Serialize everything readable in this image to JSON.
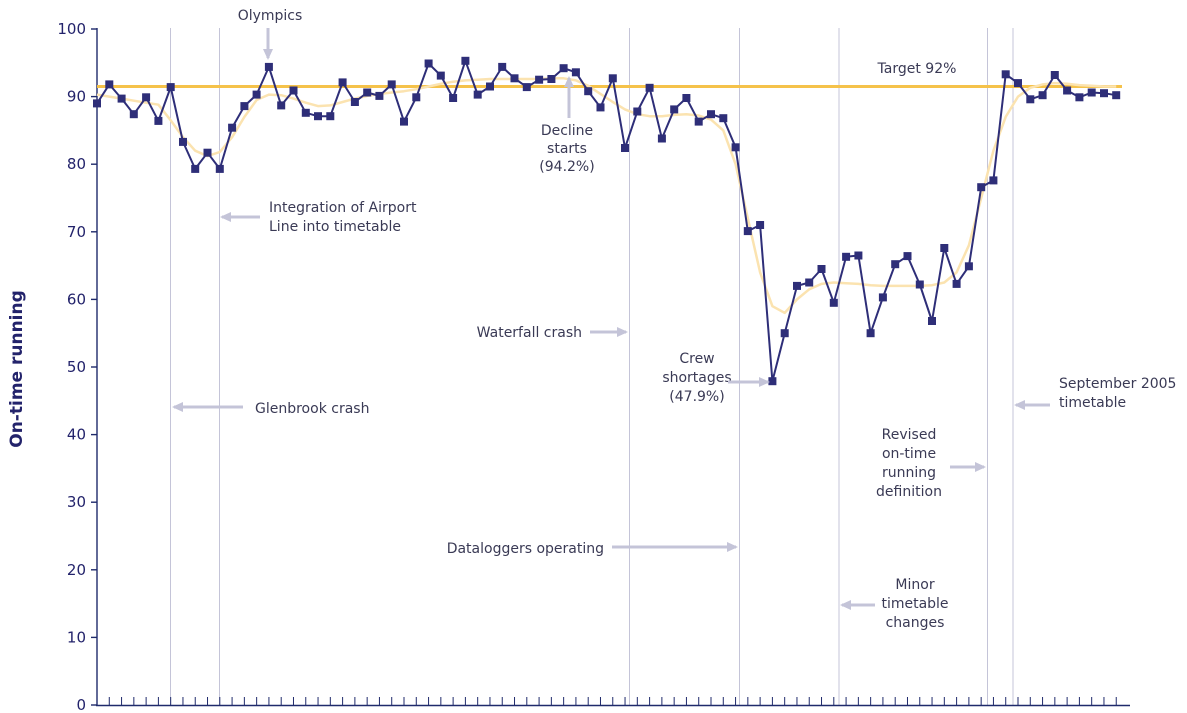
{
  "chart_data": {
    "type": "line",
    "ylabel": "On-time running",
    "ylim": [
      0,
      100
    ],
    "yticks": [
      "0",
      "10",
      "20",
      "30",
      "40",
      "50",
      "60",
      "70",
      "80",
      "90",
      "100"
    ],
    "target": {
      "value": 92,
      "label": "Target 92%",
      "color": "#f5c24a"
    },
    "colors": {
      "series": "#2e2e78",
      "trend": "#fbe3b0",
      "events": "#c4c4d8",
      "axis": "#1f2a6b"
    },
    "series": [
      {
        "values": [
          89.0,
          91.8,
          89.7,
          87.4,
          89.9,
          86.4,
          91.4,
          83.3,
          79.3,
          81.7,
          79.3,
          85.4,
          88.6,
          90.3,
          94.4,
          88.7,
          90.9,
          87.6,
          87.1,
          87.1,
          92.1,
          89.2,
          90.6,
          90.1,
          91.8,
          86.3,
          89.9,
          94.9,
          93.1,
          89.8,
          95.3,
          90.3,
          91.5,
          94.4,
          92.7,
          91.4,
          92.5,
          92.6,
          94.2,
          93.6,
          90.8,
          88.4,
          92.7,
          82.4,
          87.8,
          91.3,
          83.8,
          88.1,
          89.8,
          86.3,
          87.4,
          86.8,
          82.5,
          70.1,
          71.0,
          47.9,
          55.0,
          62.0,
          62.5,
          64.5,
          59.5,
          66.3,
          66.5,
          55.0,
          60.3,
          65.2,
          66.4,
          62.2,
          56.8,
          67.6,
          62.3,
          64.9,
          76.6,
          77.6,
          93.3,
          92.0,
          89.6,
          90.2,
          93.2,
          90.9,
          89.9,
          90.6,
          90.5,
          90.2
        ]
      }
    ],
    "trend": [
      90.3,
      90.0,
      89.7,
      89.4,
      89.1,
      88.8,
      86.5,
      84.0,
      82.0,
      81.2,
      81.8,
      84.0,
      87.0,
      89.5,
      90.3,
      90.2,
      89.7,
      89.1,
      88.6,
      88.7,
      89.2,
      89.7,
      90.1,
      90.4,
      90.6,
      90.8,
      91.1,
      91.5,
      91.9,
      92.2,
      92.4,
      92.5,
      92.6,
      92.6,
      92.6,
      92.6,
      92.6,
      92.7,
      92.7,
      92.4,
      91.6,
      90.4,
      89.2,
      88.1,
      87.4,
      87.1,
      87.1,
      87.3,
      87.4,
      87.2,
      86.6,
      85.0,
      80.0,
      72.0,
      64.0,
      59.0,
      58.0,
      60.0,
      61.5,
      62.3,
      62.5,
      62.4,
      62.3,
      62.1,
      62.0,
      62.0,
      62.0,
      62.0,
      62.1,
      62.5,
      64.0,
      68.0,
      75.0,
      82.0,
      87.0,
      90.0,
      91.3,
      91.8,
      92.0,
      91.9,
      91.7,
      91.6,
      91.5,
      91.5
    ],
    "annotations": [
      {
        "lines": [
          "Olympics"
        ]
      },
      {
        "lines": [
          "Target 92%"
        ]
      },
      {
        "lines": [
          "Decline",
          "starts",
          "(94.2%)"
        ]
      },
      {
        "lines": [
          "Integration of Airport",
          "Line into timetable"
        ]
      },
      {
        "lines": [
          "Waterfall crash"
        ]
      },
      {
        "lines": [
          "Crew",
          "shortages",
          "(47.9%)"
        ]
      },
      {
        "lines": [
          "Glenbrook crash"
        ]
      },
      {
        "lines": [
          "September 2005",
          "timetable"
        ]
      },
      {
        "lines": [
          "Revised",
          "on-time",
          "running",
          "definition"
        ]
      },
      {
        "lines": [
          "Dataloggers operating"
        ]
      },
      {
        "lines": [
          "Minor",
          "timetable",
          "changes"
        ]
      }
    ]
  }
}
